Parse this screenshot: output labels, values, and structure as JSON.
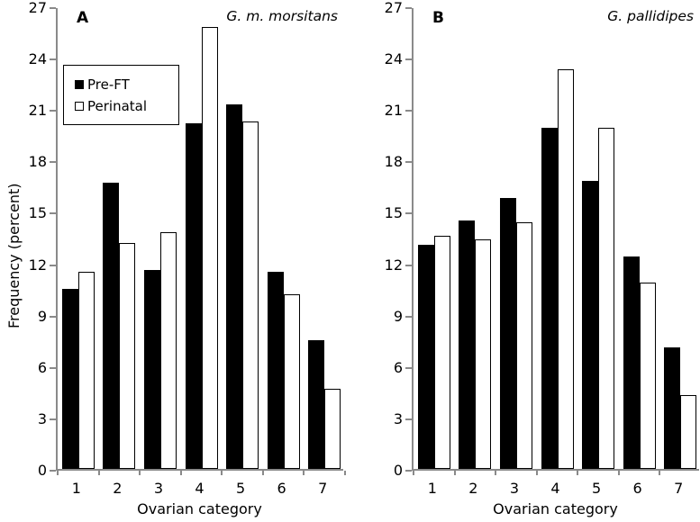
{
  "figure": {
    "ylabel": "Frequency (percent)",
    "legend": {
      "items": [
        {
          "label": "Pre-FT",
          "swatch": "filled-black-square"
        },
        {
          "label": "Perinatal",
          "swatch": "open-white-square"
        }
      ]
    },
    "colors": {
      "axis": "#8a8a8a",
      "bar_filled": "#000000",
      "bar_open_fill": "#ffffff",
      "bar_open_border": "#000000",
      "background": "#ffffff"
    }
  },
  "chart_data": [
    {
      "type": "bar",
      "panel": "A",
      "title": "G. m. morsitans",
      "xlabel": "Ovarian category",
      "ylabel": "Frequency (percent)",
      "categories": [
        "1",
        "2",
        "3",
        "4",
        "5",
        "6",
        "7"
      ],
      "series": [
        {
          "name": "Pre-FT",
          "values": [
            10.5,
            16.7,
            11.6,
            20.2,
            21.3,
            11.5,
            7.5
          ]
        },
        {
          "name": "Perinatal",
          "values": [
            11.5,
            13.2,
            13.8,
            25.8,
            20.3,
            10.2,
            4.7
          ]
        }
      ],
      "ylim": [
        0,
        27
      ],
      "ytick_step": 3,
      "legend_position": "upper-left",
      "grid": false
    },
    {
      "type": "bar",
      "panel": "B",
      "title": "G. pallidipes",
      "xlabel": "Ovarian category",
      "ylabel": "",
      "categories": [
        "1",
        "2",
        "3",
        "4",
        "5",
        "6",
        "7"
      ],
      "series": [
        {
          "name": "Pre-FT",
          "values": [
            13.1,
            14.5,
            15.8,
            19.9,
            16.8,
            12.4,
            7.1
          ]
        },
        {
          "name": "Perinatal",
          "values": [
            13.6,
            13.4,
            14.4,
            23.3,
            19.9,
            10.9,
            4.3
          ]
        }
      ],
      "ylim": [
        0,
        27
      ],
      "ytick_step": 3,
      "grid": false
    }
  ]
}
